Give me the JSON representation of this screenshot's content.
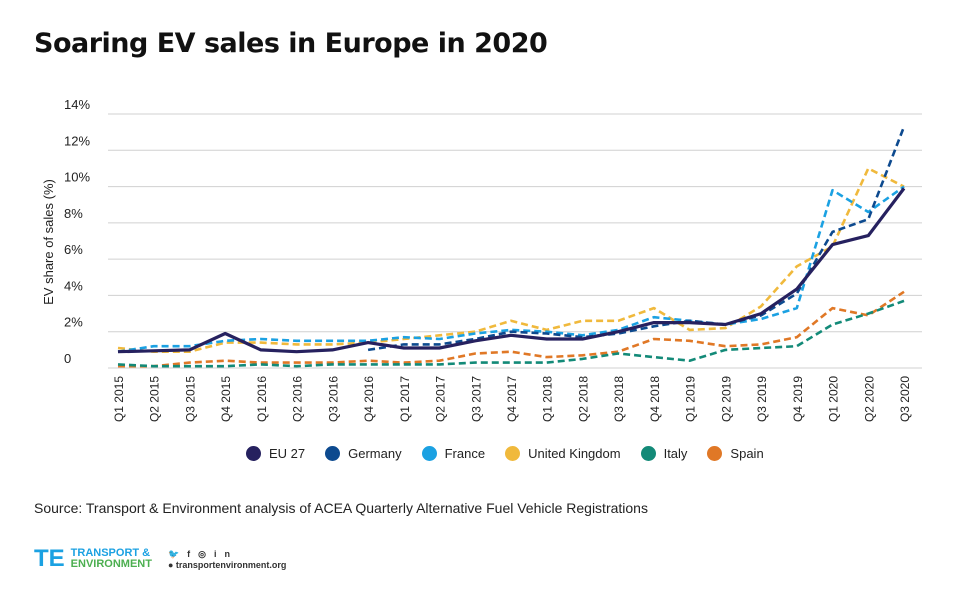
{
  "title": "Soaring EV sales in Europe in 2020",
  "source": "Source: Transport & Environment analysis of ACEA Quarterly Alternative Fuel Vehicle Registrations",
  "logo": {
    "line1": "TRANSPORT &",
    "line2": "ENVIRONMENT",
    "url": "transportenvironment.org",
    "social_icons": [
      "twitter-icon",
      "facebook-icon",
      "instagram-icon",
      "linkedin-icon"
    ]
  },
  "chart_data": {
    "type": "line",
    "title": "Soaring EV sales in Europe in 2020",
    "ylabel": "EV share of sales (%)",
    "xlabel": "",
    "ylim": [
      0,
      14
    ],
    "yticks": [
      {
        "v": 0,
        "label": "0"
      },
      {
        "v": 2,
        "label": "2%"
      },
      {
        "v": 4,
        "label": "4%"
      },
      {
        "v": 6,
        "label": "6%"
      },
      {
        "v": 8,
        "label": "8%"
      },
      {
        "v": 10,
        "label": "10%"
      },
      {
        "v": 12,
        "label": "12%"
      },
      {
        "v": 14,
        "label": "14%"
      }
    ],
    "grid": true,
    "legend": "bottom",
    "categories": [
      "Q1 2015",
      "Q2 2015",
      "Q3 2015",
      "Q4 2015",
      "Q1 2016",
      "Q2 2016",
      "Q3 2016",
      "Q4 2016",
      "Q1 2017",
      "Q2 2017",
      "Q3 2017",
      "Q4 2017",
      "Q1 2018",
      "Q2 2018",
      "Q3 2018",
      "Q4 2018",
      "Q1 2019",
      "Q2 2019",
      "Q3 2019",
      "Q4 2019",
      "Q1 2020",
      "Q2 2020",
      "Q3 2020"
    ],
    "series": [
      {
        "name": "EU 27",
        "color": "#26215f",
        "style": "solid",
        "values": [
          0.9,
          0.95,
          1.0,
          1.9,
          1.0,
          0.9,
          1.0,
          1.4,
          1.1,
          1.1,
          1.5,
          1.8,
          1.6,
          1.6,
          2.0,
          2.5,
          2.5,
          2.4,
          3.0,
          4.35,
          6.8,
          7.3,
          9.9
        ]
      },
      {
        "name": "Germany",
        "color": "#0d4a8f",
        "style": "dashed",
        "values": [
          null,
          null,
          null,
          null,
          null,
          null,
          null,
          1.0,
          1.3,
          1.3,
          1.6,
          2.0,
          1.9,
          1.7,
          1.9,
          2.3,
          2.6,
          2.4,
          2.9,
          4.1,
          7.5,
          8.2,
          13.3
        ]
      },
      {
        "name": "France",
        "color": "#1ba1e2",
        "style": "dashed",
        "values": [
          0.9,
          1.2,
          1.2,
          1.5,
          1.6,
          1.5,
          1.5,
          1.5,
          1.7,
          1.6,
          1.9,
          2.1,
          2.0,
          1.8,
          2.1,
          2.8,
          2.6,
          2.4,
          2.7,
          3.3,
          9.8,
          8.6,
          10.0
        ]
      },
      {
        "name": "United Kingdom",
        "color": "#f0b93c",
        "style": "dashed",
        "values": [
          1.1,
          0.9,
          0.9,
          1.4,
          1.4,
          1.3,
          1.3,
          1.4,
          1.6,
          1.8,
          2.0,
          2.6,
          2.1,
          2.6,
          2.6,
          3.3,
          2.1,
          2.2,
          3.4,
          5.6,
          6.7,
          11.0,
          10.0
        ]
      },
      {
        "name": "Italy",
        "color": "#138a78",
        "style": "dashed",
        "values": [
          0.2,
          0.1,
          0.1,
          0.1,
          0.2,
          0.1,
          0.2,
          0.2,
          0.2,
          0.2,
          0.3,
          0.3,
          0.3,
          0.5,
          0.8,
          0.6,
          0.4,
          1.0,
          1.1,
          1.2,
          2.4,
          3.0,
          3.7
        ]
      },
      {
        "name": "Spain",
        "color": "#e07826",
        "style": "dashed",
        "values": [
          0.1,
          0.1,
          0.3,
          0.4,
          0.3,
          0.3,
          0.3,
          0.4,
          0.3,
          0.4,
          0.8,
          0.9,
          0.6,
          0.7,
          0.9,
          1.6,
          1.5,
          1.2,
          1.3,
          1.7,
          3.3,
          2.9,
          4.2
        ]
      }
    ]
  }
}
